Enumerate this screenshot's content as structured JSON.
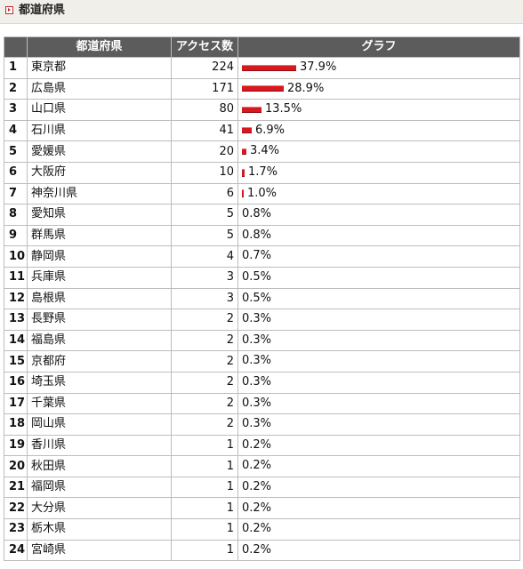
{
  "section": {
    "title": "都道府県"
  },
  "table": {
    "headers": {
      "pref": "都道府県",
      "count": "アクセス数",
      "graph": "グラフ"
    },
    "rows": [
      {
        "rank": "1",
        "pref": "東京都",
        "count": "224",
        "pct": "37.9%",
        "share": 37.9
      },
      {
        "rank": "2",
        "pref": "広島県",
        "count": "171",
        "pct": "28.9%",
        "share": 28.9
      },
      {
        "rank": "3",
        "pref": "山口県",
        "count": "80",
        "pct": "13.5%",
        "share": 13.5
      },
      {
        "rank": "4",
        "pref": "石川県",
        "count": "41",
        "pct": "6.9%",
        "share": 6.9
      },
      {
        "rank": "5",
        "pref": "愛媛県",
        "count": "20",
        "pct": "3.4%",
        "share": 3.4
      },
      {
        "rank": "6",
        "pref": "大阪府",
        "count": "10",
        "pct": "1.7%",
        "share": 1.7
      },
      {
        "rank": "7",
        "pref": "神奈川県",
        "count": "6",
        "pct": "1.0%",
        "share": 1.0
      },
      {
        "rank": "8",
        "pref": "愛知県",
        "count": "5",
        "pct": "0.8%",
        "share": 0.8
      },
      {
        "rank": "9",
        "pref": "群馬県",
        "count": "5",
        "pct": "0.8%",
        "share": 0.8
      },
      {
        "rank": "10",
        "pref": "静岡県",
        "count": "4",
        "pct": "0.7%",
        "share": 0.7
      },
      {
        "rank": "11",
        "pref": "兵庫県",
        "count": "3",
        "pct": "0.5%",
        "share": 0.5
      },
      {
        "rank": "12",
        "pref": "島根県",
        "count": "3",
        "pct": "0.5%",
        "share": 0.5
      },
      {
        "rank": "13",
        "pref": "長野県",
        "count": "2",
        "pct": "0.3%",
        "share": 0.3
      },
      {
        "rank": "14",
        "pref": "福島県",
        "count": "2",
        "pct": "0.3%",
        "share": 0.3
      },
      {
        "rank": "15",
        "pref": "京都府",
        "count": "2",
        "pct": "0.3%",
        "share": 0.3
      },
      {
        "rank": "16",
        "pref": "埼玉県",
        "count": "2",
        "pct": "0.3%",
        "share": 0.3
      },
      {
        "rank": "17",
        "pref": "千葉県",
        "count": "2",
        "pct": "0.3%",
        "share": 0.3
      },
      {
        "rank": "18",
        "pref": "岡山県",
        "count": "2",
        "pct": "0.3%",
        "share": 0.3
      },
      {
        "rank": "19",
        "pref": "香川県",
        "count": "1",
        "pct": "0.2%",
        "share": 0.2
      },
      {
        "rank": "20",
        "pref": "秋田県",
        "count": "1",
        "pct": "0.2%",
        "share": 0.2
      },
      {
        "rank": "21",
        "pref": "福岡県",
        "count": "1",
        "pct": "0.2%",
        "share": 0.2
      },
      {
        "rank": "22",
        "pref": "大分県",
        "count": "1",
        "pct": "0.2%",
        "share": 0.2
      },
      {
        "rank": "23",
        "pref": "栃木県",
        "count": "1",
        "pct": "0.2%",
        "share": 0.2
      },
      {
        "rank": "24",
        "pref": "宮崎県",
        "count": "1",
        "pct": "0.2%",
        "share": 0.2
      }
    ]
  },
  "colors": {
    "bar": "#d7191f",
    "header_bg": "#5c5c5c"
  }
}
